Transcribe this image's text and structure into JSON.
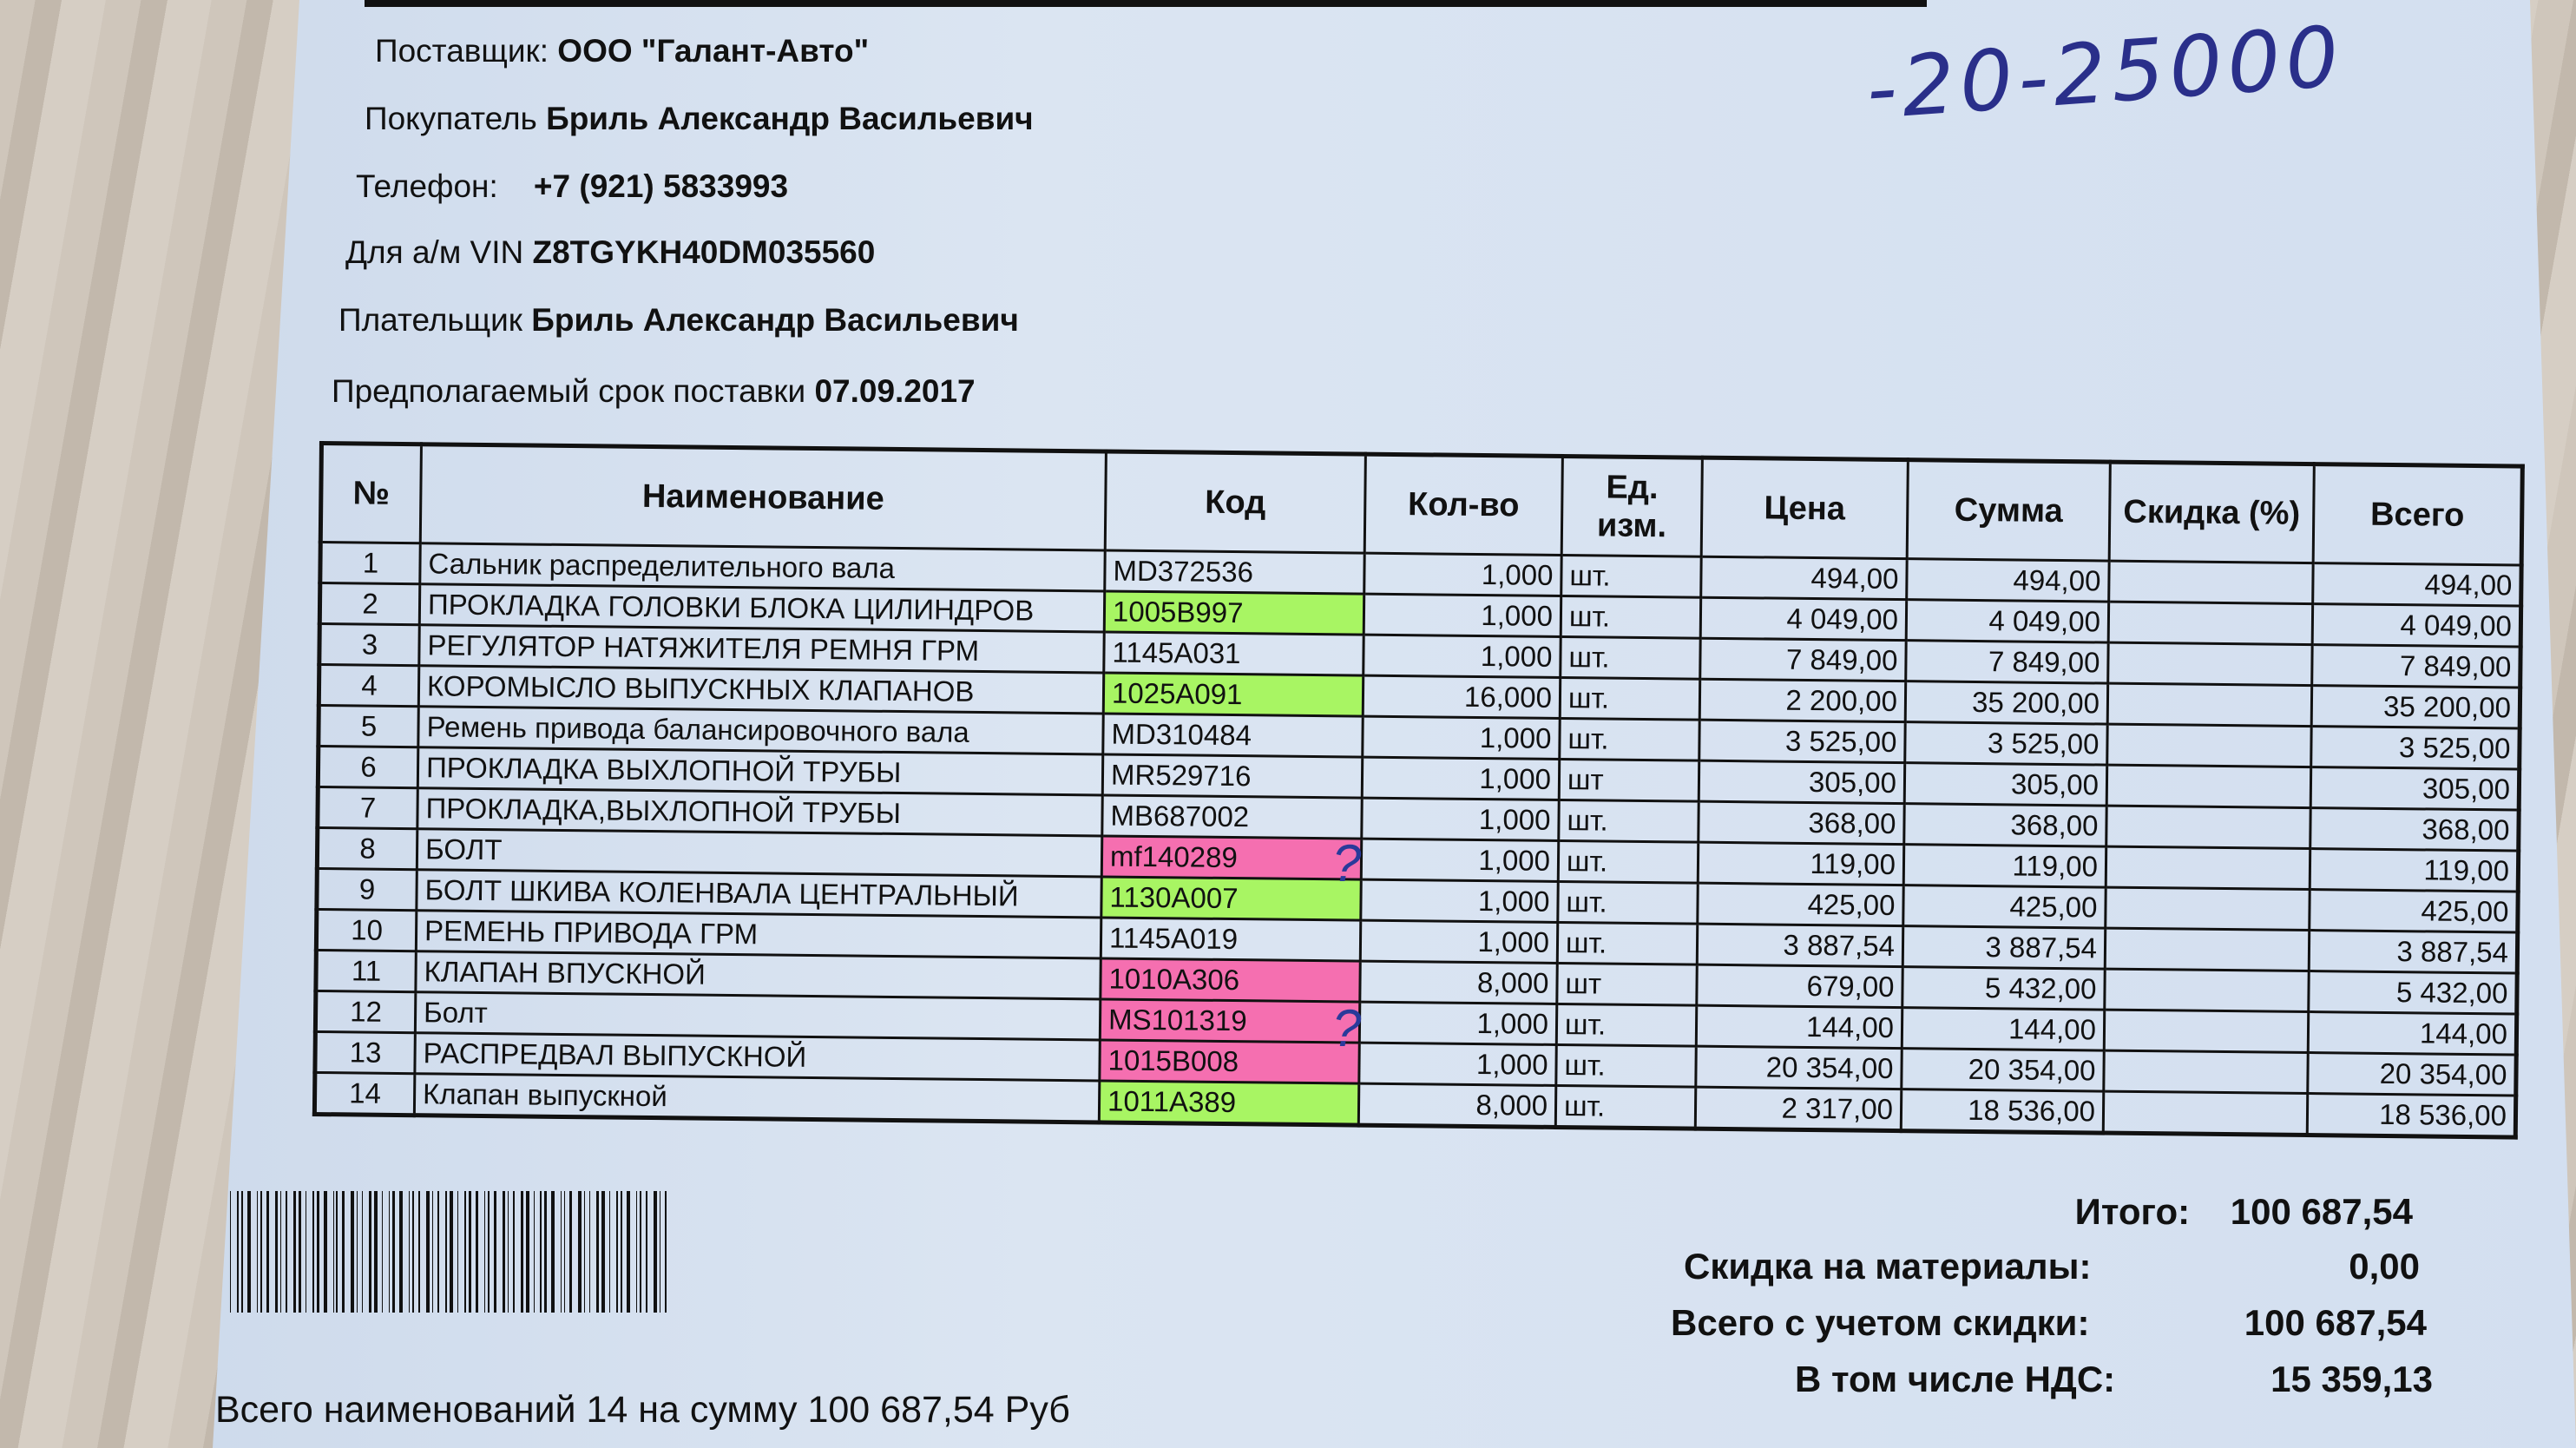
{
  "header": {
    "supplier_label": "Поставщик:",
    "supplier_value": "ООО \"Галант-Авто\"",
    "buyer_label": "Покупатель",
    "buyer_value": "Бриль Александр Васильевич",
    "phone_label": "Телефон:",
    "phone_value": "+7 (921) 5833993",
    "vin_label": "Для а/м VIN",
    "vin_value": "Z8TGYKH40DM035560",
    "payer_label": "Плательщик",
    "payer_value": "Бриль Александр Васильевич",
    "delivery_label": "Предполагаемый срок поставки",
    "delivery_value": "07.09.2017"
  },
  "handwritten_note": "-20-25000",
  "table": {
    "columns": [
      "№",
      "Наименование",
      "Код",
      "Кол-во",
      "Ед. изм.",
      "Цена",
      "Сумма",
      "Скидка (%)",
      "Всего"
    ],
    "rows": [
      {
        "n": "1",
        "name": "Сальник распределительного вала",
        "code": "MD372536",
        "qty": "1,000",
        "unit": "шт.",
        "price": "494,00",
        "sum": "494,00",
        "discount": "",
        "total": "494,00",
        "highlight": ""
      },
      {
        "n": "2",
        "name": "ПРОКЛАДКА ГОЛОВКИ БЛОКА ЦИЛИНДРОВ",
        "code": "1005B997",
        "qty": "1,000",
        "unit": "шт.",
        "price": "4 049,00",
        "sum": "4 049,00",
        "discount": "",
        "total": "4 049,00",
        "highlight": "green"
      },
      {
        "n": "3",
        "name": "РЕГУЛЯТОР НАТЯЖИТЕЛЯ РЕМНЯ ГРМ",
        "code": "1145A031",
        "qty": "1,000",
        "unit": "шт.",
        "price": "7 849,00",
        "sum": "7 849,00",
        "discount": "",
        "total": "7 849,00",
        "highlight": ""
      },
      {
        "n": "4",
        "name": "КОРОМЫСЛО ВЫПУСКНЫХ КЛАПАНОВ",
        "code": "1025A091",
        "qty": "16,000",
        "unit": "шт.",
        "price": "2 200,00",
        "sum": "35 200,00",
        "discount": "",
        "total": "35 200,00",
        "highlight": "green"
      },
      {
        "n": "5",
        "name": "Ремень привода балансировочного вала",
        "code": "MD310484",
        "qty": "1,000",
        "unit": "шт.",
        "price": "3 525,00",
        "sum": "3 525,00",
        "discount": "",
        "total": "3 525,00",
        "highlight": ""
      },
      {
        "n": "6",
        "name": "ПРОКЛАДКА ВЫХЛОПНОЙ ТРУБЫ",
        "code": "MR529716",
        "qty": "1,000",
        "unit": "шт",
        "price": "305,00",
        "sum": "305,00",
        "discount": "",
        "total": "305,00",
        "highlight": ""
      },
      {
        "n": "7",
        "name": "ПРОКЛАДКА,ВЫХЛОПНОЙ ТРУБЫ",
        "code": "MB687002",
        "qty": "1,000",
        "unit": "шт.",
        "price": "368,00",
        "sum": "368,00",
        "discount": "",
        "total": "368,00",
        "highlight": ""
      },
      {
        "n": "8",
        "name": "БОЛТ",
        "code": "mf140289",
        "qty": "1,000",
        "unit": "шт.",
        "price": "119,00",
        "sum": "119,00",
        "discount": "",
        "total": "119,00",
        "highlight": "pink"
      },
      {
        "n": "9",
        "name": "БОЛТ ШКИВА КОЛЕНВАЛА ЦЕНТРАЛЬНЫЙ",
        "code": "1130A007",
        "qty": "1,000",
        "unit": "шт.",
        "price": "425,00",
        "sum": "425,00",
        "discount": "",
        "total": "425,00",
        "highlight": "green"
      },
      {
        "n": "10",
        "name": "РЕМЕНЬ ПРИВОДА ГРМ",
        "code": "1145A019",
        "qty": "1,000",
        "unit": "шт.",
        "price": "3 887,54",
        "sum": "3 887,54",
        "discount": "",
        "total": "3 887,54",
        "highlight": ""
      },
      {
        "n": "11",
        "name": "КЛАПАН ВПУСКНОЙ",
        "code": "1010A306",
        "qty": "8,000",
        "unit": "шт",
        "price": "679,00",
        "sum": "5 432,00",
        "discount": "",
        "total": "5 432,00",
        "highlight": "pink"
      },
      {
        "n": "12",
        "name": "Болт",
        "code": "MS101319",
        "qty": "1,000",
        "unit": "шт.",
        "price": "144,00",
        "sum": "144,00",
        "discount": "",
        "total": "144,00",
        "highlight": "pink"
      },
      {
        "n": "13",
        "name": "РАСПРЕДВАЛ ВЫПУСКНОЙ",
        "code": "1015B008",
        "qty": "1,000",
        "unit": "шт.",
        "price": "20 354,00",
        "sum": "20 354,00",
        "discount": "",
        "total": "20 354,00",
        "highlight": "pink"
      },
      {
        "n": "14",
        "name": "Клапан выпускной",
        "code": "1011A389",
        "qty": "8,000",
        "unit": "шт.",
        "price": "2 317,00",
        "sum": "18 536,00",
        "discount": "",
        "total": "18 536,00",
        "highlight": "green"
      }
    ]
  },
  "totals": {
    "subtotal_label": "Итого:",
    "subtotal_value": "100 687,54",
    "discount_label": "Скидка на материалы:",
    "discount_value": "0,00",
    "total_label": "Всего с учетом скидки:",
    "total_value": "100 687,54",
    "vat_label": "В том числе НДС:",
    "vat_value": "15 359,13"
  },
  "footer": "Всего наименований 14 на сумму 100 687,54 Руб",
  "colors": {
    "highlight_green": "#a8f563",
    "highlight_pink": "#f56fb0",
    "ink": "#2a3a9a",
    "paper": "#d4e0f0"
  }
}
